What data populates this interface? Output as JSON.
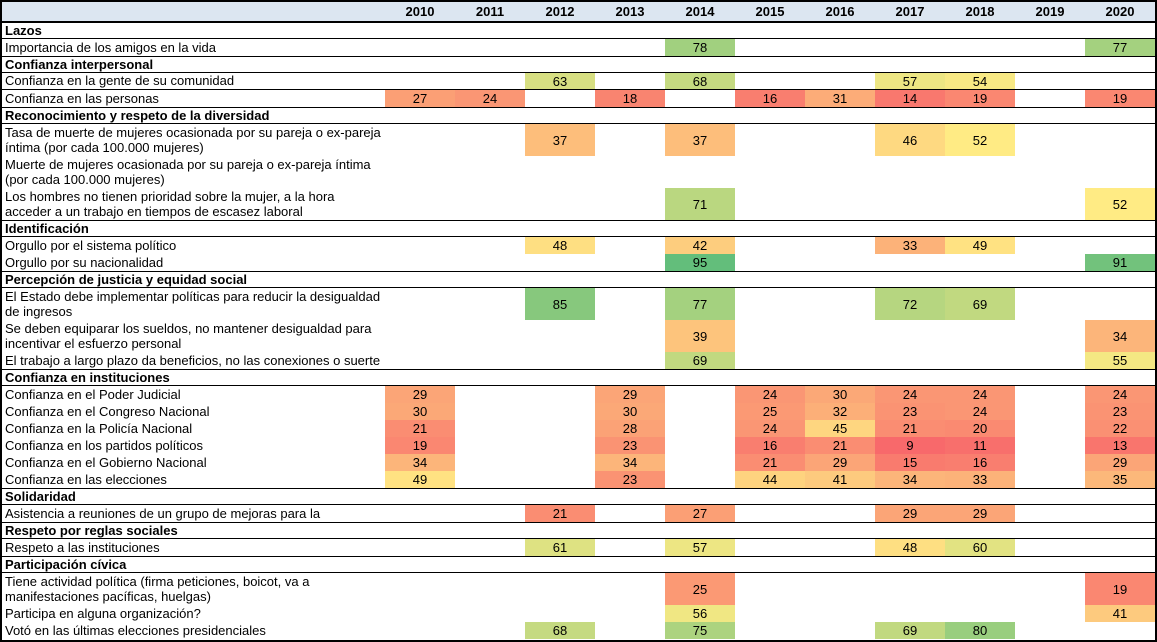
{
  "chart_data": {
    "type": "heatmap",
    "columns": [
      "2010",
      "2011",
      "2012",
      "2013",
      "2014",
      "2015",
      "2016",
      "2017",
      "2018",
      "2019",
      "2020"
    ],
    "header_bg": "#DCE6F1",
    "color_scale": {
      "min_value": 9,
      "min_color": "#F8696B",
      "mid_value": 52,
      "mid_color": "#FFEB84",
      "max_value": 95,
      "max_color": "#63BE7B"
    },
    "rows": [
      {
        "type": "section",
        "label": "Lazos"
      },
      {
        "type": "data",
        "label": "Importancia de los amigos en la vida",
        "values": {
          "2014": 78,
          "2020": 77
        }
      },
      {
        "type": "section",
        "label": "Confianza interpersonal"
      },
      {
        "type": "data",
        "label": "Confianza en la gente de su comunidad",
        "border_bottom": true,
        "values": {
          "2012": 63,
          "2014": 68,
          "2017": 57,
          "2018": 54
        }
      },
      {
        "type": "data",
        "label": "Confianza en las personas",
        "values": {
          "2010": 27,
          "2011": 24,
          "2013": 18,
          "2015": 16,
          "2016": 31,
          "2017": 14,
          "2018": 19,
          "2020": 19
        }
      },
      {
        "type": "section",
        "label": "Reconocimiento y respeto de la diversidad"
      },
      {
        "type": "data",
        "label": "Tasa de muerte de mujeres ocasionada por su pareja o ex-pareja\níntima (por cada 100.000 mujeres)",
        "lines": 2,
        "values": {
          "2012": 37,
          "2014": 37,
          "2017": 46,
          "2018": 52
        }
      },
      {
        "type": "data",
        "label": "Muerte de mujeres ocasionada por su pareja o ex-pareja íntima\n(por cada 100.000 mujeres)",
        "lines": 2,
        "values": {}
      },
      {
        "type": "data",
        "label": "Los hombres no tienen prioridad sobre la mujer, a la hora\nacceder a un trabajo en tiempos de escasez laboral",
        "lines": 2,
        "values": {
          "2014": 71,
          "2020": 52
        }
      },
      {
        "type": "section",
        "label": "Identificación"
      },
      {
        "type": "data",
        "label": "Orgullo por el sistema político",
        "values": {
          "2012": 48,
          "2014": 42,
          "2017": 33,
          "2018": 49
        }
      },
      {
        "type": "data",
        "label": "Orgullo por su nacionalidad",
        "values": {
          "2014": 95,
          "2020": 91
        }
      },
      {
        "type": "section",
        "label": "Percepción de justicia y equidad social"
      },
      {
        "type": "data",
        "label": "El Estado debe implementar políticas para reducir la desigualdad\nde ingresos",
        "lines": 2,
        "values": {
          "2012": 85,
          "2014": 77,
          "2017": 72,
          "2018": 69
        }
      },
      {
        "type": "data",
        "label": "Se deben equiparar los sueldos, no mantener desigualdad para\nincentivar el esfuerzo personal",
        "lines": 2,
        "values": {
          "2014": 39,
          "2020": 34
        }
      },
      {
        "type": "data",
        "label": "El trabajo a largo plazo da beneficios, no las conexiones o suerte",
        "values": {
          "2014": 69,
          "2020": 55
        }
      },
      {
        "type": "section",
        "label": "Confianza en instituciones"
      },
      {
        "type": "data",
        "label": "Confianza en el Poder Judicial",
        "values": {
          "2010": 29,
          "2013": 29,
          "2015": 24,
          "2016": 30,
          "2017": 24,
          "2018": 24,
          "2020": 24
        }
      },
      {
        "type": "data",
        "label": "Confianza en el Congreso Nacional",
        "values": {
          "2010": 30,
          "2013": 30,
          "2015": 25,
          "2016": 32,
          "2017": 23,
          "2018": 24,
          "2020": 23
        }
      },
      {
        "type": "data",
        "label": "Confianza en la Policía Nacional",
        "values": {
          "2010": 21,
          "2013": 28,
          "2015": 24,
          "2016": 45,
          "2017": 21,
          "2018": 20,
          "2020": 22
        }
      },
      {
        "type": "data",
        "label": "Confianza en los partidos políticos",
        "values": {
          "2010": 19,
          "2013": 23,
          "2015": 16,
          "2016": 21,
          "2017": 9,
          "2018": 11,
          "2020": 13
        }
      },
      {
        "type": "data",
        "label": "Confianza en el Gobierno Nacional",
        "values": {
          "2010": 34,
          "2013": 34,
          "2015": 21,
          "2016": 29,
          "2017": 15,
          "2018": 16,
          "2020": 29
        }
      },
      {
        "type": "data",
        "label": "Confianza en las elecciones",
        "values": {
          "2010": 49,
          "2013": 23,
          "2015": 44,
          "2016": 41,
          "2017": 34,
          "2018": 33,
          "2020": 35
        }
      },
      {
        "type": "section",
        "label": "Solidaridad"
      },
      {
        "type": "data",
        "label": "Asistencia a reuniones de un grupo de mejoras para la",
        "values": {
          "2012": 21,
          "2014": 27,
          "2017": 29,
          "2018": 29
        }
      },
      {
        "type": "section",
        "label": "Respeto por reglas sociales"
      },
      {
        "type": "data",
        "label": "Respeto a las instituciones",
        "values": {
          "2012": 61,
          "2014": 57,
          "2017": 48,
          "2018": 60
        }
      },
      {
        "type": "section",
        "label": "Participación cívica"
      },
      {
        "type": "data",
        "label": "Tiene actividad política (firma peticiones, boicot, va a\nmanifestaciones pacíficas, huelgas)",
        "lines": 2,
        "values": {
          "2014": 25,
          "2020": 19
        }
      },
      {
        "type": "data",
        "label": "Participa en alguna organización?",
        "values": {
          "2014": 56,
          "2020": 41
        }
      },
      {
        "type": "data",
        "label": "Votó en las últimas elecciones presidenciales",
        "values": {
          "2012": 68,
          "2014": 75,
          "2017": 69,
          "2018": 80
        }
      }
    ]
  }
}
